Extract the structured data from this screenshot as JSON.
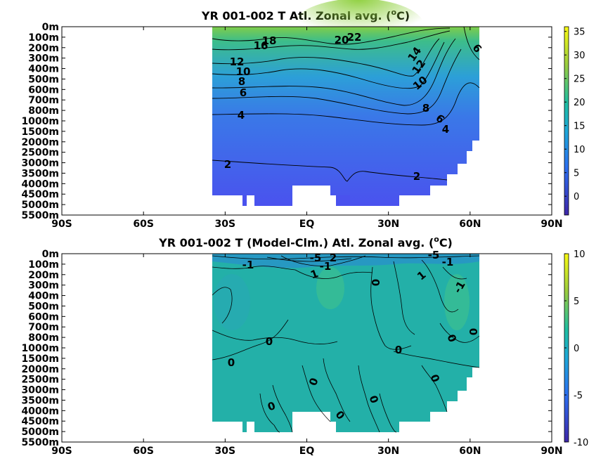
{
  "chart_data": [
    {
      "type": "heatmap",
      "title": "YR 001-002 T Atl. Zonal avg. (",
      "title_sup": "o",
      "title_unit": "C)",
      "x_ticks": [
        "90S",
        "60S",
        "30S",
        "EQ",
        "30N",
        "60N",
        "90N"
      ],
      "x_tick_values": [
        -90,
        -60,
        -30,
        0,
        30,
        60,
        90
      ],
      "xlim": [
        -90,
        90
      ],
      "y_ticks": [
        "0m",
        "100m",
        "200m",
        "300m",
        "400m",
        "500m",
        "600m",
        "700m",
        "800m",
        "1000m",
        "1500m",
        "2000m",
        "2500m",
        "3000m",
        "3500m",
        "4000m",
        "4500m",
        "5000m",
        "5500m"
      ],
      "colorbar": {
        "ticks": [
          "35",
          "30",
          "25",
          "20",
          "15",
          "10",
          "5",
          "0"
        ],
        "tick_values": [
          35,
          30,
          25,
          20,
          15,
          10,
          5,
          0
        ],
        "range": [
          -4,
          36
        ]
      },
      "contour_labels": [
        "18",
        "16",
        "20",
        "22",
        "14",
        "12",
        "6",
        "12",
        "10",
        "8",
        "10",
        "6",
        "8",
        "4",
        "6",
        "4",
        "2",
        "2"
      ],
      "colors": {
        "deep": "#4a52ee",
        "mid": "#2c9fd8",
        "warm": "#3dbd8a",
        "surface": "#8fd03f"
      }
    },
    {
      "type": "heatmap",
      "title": "YR 001-002 T (Model-Clm.) Atl. Zonal avg. (",
      "title_sup": "o",
      "title_unit": "C)",
      "x_ticks": [
        "90S",
        "60S",
        "30S",
        "EQ",
        "30N",
        "60N",
        "90N"
      ],
      "x_tick_values": [
        -90,
        -60,
        -30,
        0,
        30,
        60,
        90
      ],
      "xlim": [
        -90,
        90
      ],
      "y_ticks": [
        "0m",
        "100m",
        "200m",
        "300m",
        "400m",
        "500m",
        "600m",
        "700m",
        "800m",
        "1000m",
        "1500m",
        "2000m",
        "2500m",
        "3000m",
        "3500m",
        "4000m",
        "4500m",
        "5000m",
        "5500m"
      ],
      "colorbar": {
        "ticks": [
          "10",
          "5",
          "0",
          "-5",
          "-10"
        ],
        "tick_values": [
          10,
          5,
          0,
          -5,
          -10
        ],
        "range": [
          -10,
          10
        ]
      },
      "contour_labels": [
        "-1",
        "-5",
        "2",
        "-1",
        "1",
        "0",
        "-5",
        "-1",
        "1",
        "-1",
        "0",
        "0",
        "0",
        "0",
        "0",
        "0",
        "0",
        "0",
        "0",
        "0"
      ],
      "colors": {
        "field": "#23b0a8",
        "warm": "#3fc38c",
        "cool": "#2a95c8"
      }
    }
  ]
}
